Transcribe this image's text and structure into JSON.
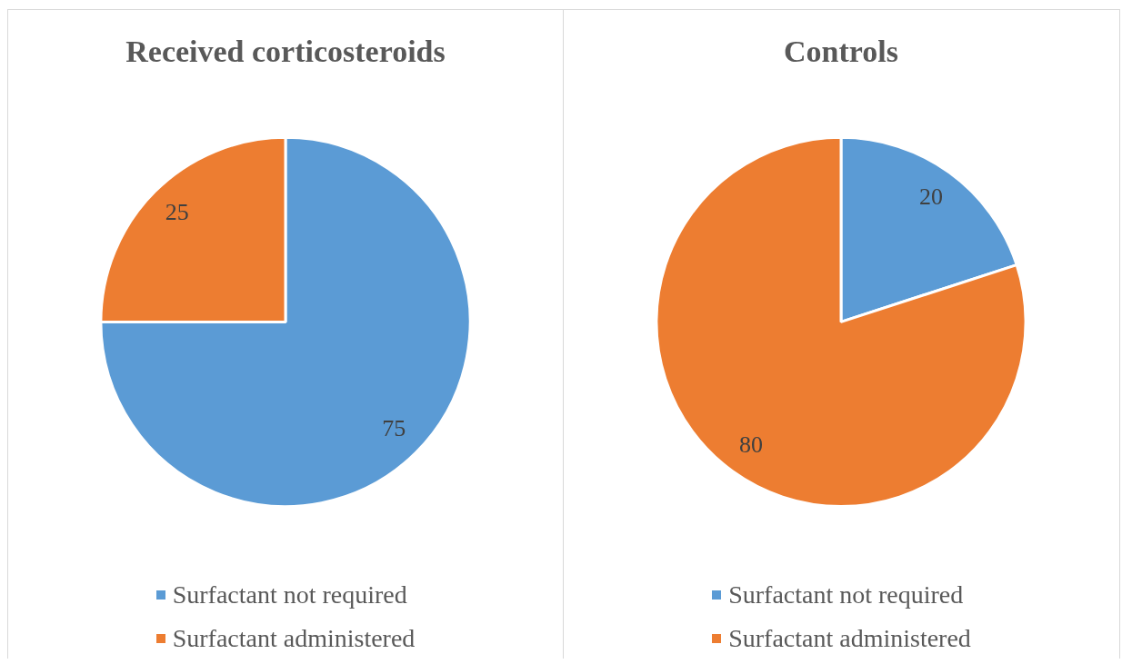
{
  "chart_data": [
    {
      "type": "pie",
      "title": "Received corticosteroids",
      "categories": [
        "Surfactant not required",
        "Surfactant administered"
      ],
      "values": [
        75,
        25
      ],
      "colors": [
        "#5b9bd5",
        "#ed7d31"
      ],
      "data_labels": true,
      "legend": "bottom"
    },
    {
      "type": "pie",
      "title": "Controls",
      "categories": [
        "Surfactant not required",
        "Surfactant administered"
      ],
      "values": [
        20,
        80
      ],
      "colors": [
        "#5b9bd5",
        "#ed7d31"
      ],
      "data_labels": true,
      "legend": "bottom"
    }
  ]
}
